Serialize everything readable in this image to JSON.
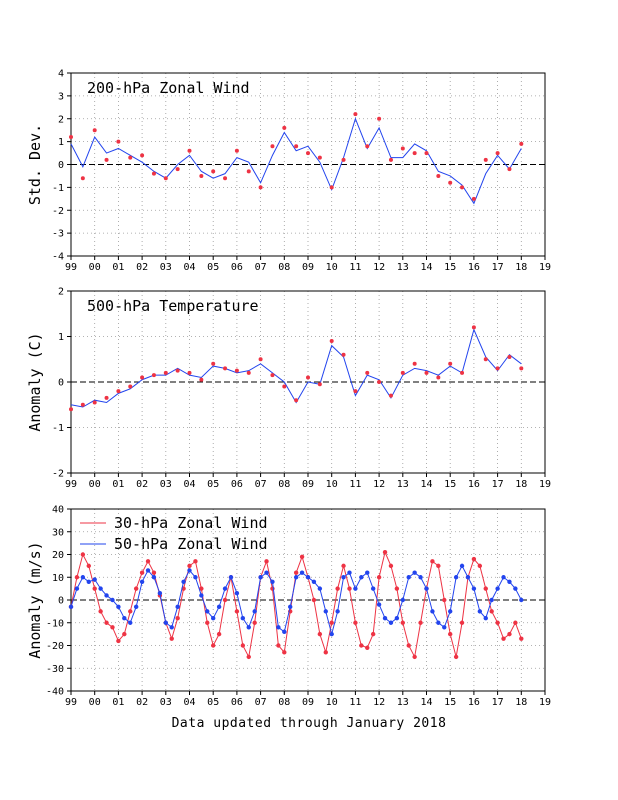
{
  "footer": "Data updated through January 2018",
  "x_ticks": [
    "99",
    "00",
    "01",
    "02",
    "03",
    "04",
    "05",
    "06",
    "07",
    "08",
    "09",
    "10",
    "11",
    "12",
    "13",
    "14",
    "15",
    "16",
    "17",
    "18",
    "19"
  ],
  "colors": {
    "red": "#ee3344",
    "blue": "#2244ee",
    "grid": "#999999",
    "axis": "#000000"
  },
  "chart_data": [
    {
      "type": "line",
      "title": "200-hPa Zonal Wind",
      "ylabel": "Std. Dev.",
      "xlim": [
        1999,
        2019
      ],
      "ylim": [
        -4,
        4
      ],
      "yticks": [
        -4,
        -3,
        -2,
        -1,
        0,
        1,
        2,
        3,
        4
      ],
      "grid": true,
      "x": [
        1999.0,
        1999.5,
        2000.0,
        2000.5,
        2001.0,
        2001.5,
        2002.0,
        2002.5,
        2003.0,
        2003.5,
        2004.0,
        2004.5,
        2005.0,
        2005.5,
        2006.0,
        2006.5,
        2007.0,
        2007.5,
        2008.0,
        2008.5,
        2009.0,
        2009.5,
        2010.0,
        2010.5,
        2011.0,
        2011.5,
        2012.0,
        2012.5,
        2013.0,
        2013.5,
        2014.0,
        2014.5,
        2015.0,
        2015.5,
        2016.0,
        2016.5,
        2017.0,
        2017.5,
        2018.0
      ],
      "series": [
        {
          "style": "dots",
          "values": [
            1.2,
            -0.6,
            1.5,
            0.2,
            1.0,
            0.3,
            0.4,
            -0.4,
            -0.6,
            -0.2,
            0.6,
            -0.5,
            -0.3,
            -0.6,
            0.6,
            -0.3,
            -1.0,
            0.8,
            1.6,
            0.8,
            0.5,
            0.3,
            -1.0,
            0.2,
            2.2,
            0.8,
            2.0,
            0.2,
            0.7,
            0.5,
            0.5,
            -0.5,
            -0.8,
            -1.0,
            -1.5,
            0.2,
            0.5,
            -0.2,
            0.9
          ]
        },
        {
          "style": "line",
          "values": [
            0.9,
            -0.1,
            1.2,
            0.5,
            0.7,
            0.4,
            0.1,
            -0.3,
            -0.6,
            0.0,
            0.4,
            -0.3,
            -0.6,
            -0.4,
            0.3,
            0.1,
            -0.8,
            0.4,
            1.4,
            0.6,
            0.8,
            0.1,
            -1.1,
            0.3,
            2.0,
            0.7,
            1.6,
            0.3,
            0.3,
            0.9,
            0.6,
            -0.3,
            -0.5,
            -0.9,
            -1.7,
            -0.4,
            0.4,
            -0.2,
            0.7
          ]
        }
      ]
    },
    {
      "type": "line",
      "title": "500-hPa Temperature",
      "ylabel": "Anomaly (C)",
      "xlim": [
        1999,
        2019
      ],
      "ylim": [
        -2,
        2
      ],
      "yticks": [
        -2,
        -1,
        0,
        1,
        2
      ],
      "grid": true,
      "x": [
        1999.0,
        1999.5,
        2000.0,
        2000.5,
        2001.0,
        2001.5,
        2002.0,
        2002.5,
        2003.0,
        2003.5,
        2004.0,
        2004.5,
        2005.0,
        2005.5,
        2006.0,
        2006.5,
        2007.0,
        2007.5,
        2008.0,
        2008.5,
        2009.0,
        2009.5,
        2010.0,
        2010.5,
        2011.0,
        2011.5,
        2012.0,
        2012.5,
        2013.0,
        2013.5,
        2014.0,
        2014.5,
        2015.0,
        2015.5,
        2016.0,
        2016.5,
        2017.0,
        2017.5,
        2018.0
      ],
      "series": [
        {
          "style": "dots",
          "values": [
            -0.6,
            -0.5,
            -0.45,
            -0.35,
            -0.2,
            -0.1,
            0.1,
            0.15,
            0.2,
            0.25,
            0.2,
            0.05,
            0.4,
            0.3,
            0.25,
            0.2,
            0.5,
            0.15,
            -0.1,
            -0.4,
            0.1,
            -0.05,
            0.9,
            0.6,
            -0.2,
            0.2,
            0.0,
            -0.3,
            0.2,
            0.4,
            0.2,
            0.1,
            0.4,
            0.2,
            1.2,
            0.5,
            0.3,
            0.55,
            0.3
          ]
        },
        {
          "style": "line",
          "values": [
            -0.5,
            -0.55,
            -0.4,
            -0.45,
            -0.25,
            -0.15,
            0.05,
            0.15,
            0.15,
            0.3,
            0.15,
            0.1,
            0.35,
            0.3,
            0.2,
            0.25,
            0.4,
            0.2,
            0.0,
            -0.45,
            0.0,
            -0.05,
            0.8,
            0.55,
            -0.3,
            0.15,
            0.05,
            -0.35,
            0.15,
            0.3,
            0.25,
            0.15,
            0.35,
            0.2,
            1.15,
            0.55,
            0.25,
            0.6,
            0.4
          ]
        }
      ]
    },
    {
      "type": "line",
      "title": "",
      "ylabel": "Anomaly (m/s)",
      "xlim": [
        1999,
        2019
      ],
      "ylim": [
        -40,
        40
      ],
      "yticks": [
        -40,
        -30,
        -20,
        -10,
        0,
        10,
        20,
        30,
        40
      ],
      "grid": true,
      "legend": "top-left",
      "x": [
        1999.0,
        1999.25,
        1999.5,
        1999.75,
        2000.0,
        2000.25,
        2000.5,
        2000.75,
        2001.0,
        2001.25,
        2001.5,
        2001.75,
        2002.0,
        2002.25,
        2002.5,
        2002.75,
        2003.0,
        2003.25,
        2003.5,
        2003.75,
        2004.0,
        2004.25,
        2004.5,
        2004.75,
        2005.0,
        2005.25,
        2005.5,
        2005.75,
        2006.0,
        2006.25,
        2006.5,
        2006.75,
        2007.0,
        2007.25,
        2007.5,
        2007.75,
        2008.0,
        2008.25,
        2008.5,
        2008.75,
        2009.0,
        2009.25,
        2009.5,
        2009.75,
        2010.0,
        2010.25,
        2010.5,
        2010.75,
        2011.0,
        2011.25,
        2011.5,
        2011.75,
        2012.0,
        2012.25,
        2012.5,
        2012.75,
        2013.0,
        2013.25,
        2013.5,
        2013.75,
        2014.0,
        2014.25,
        2014.5,
        2014.75,
        2015.0,
        2015.25,
        2015.5,
        2015.75,
        2016.0,
        2016.25,
        2016.5,
        2016.75,
        2017.0,
        2017.25,
        2017.5,
        2017.75,
        2018.0
      ],
      "series": [
        {
          "name": "30-hPa Zonal Wind",
          "color": "red",
          "values": [
            -3,
            10,
            20,
            15,
            5,
            -5,
            -10,
            -12,
            -18,
            -15,
            -5,
            5,
            12,
            17,
            12,
            2,
            -10,
            -17,
            -8,
            5,
            15,
            17,
            5,
            -10,
            -20,
            -15,
            0,
            10,
            -5,
            -20,
            -25,
            -10,
            10,
            17,
            5,
            -20,
            -23,
            -5,
            12,
            19,
            10,
            0,
            -15,
            -23,
            -10,
            5,
            15,
            5,
            -10,
            -20,
            -21,
            -15,
            10,
            21,
            15,
            5,
            -10,
            -20,
            -25,
            -10,
            5,
            17,
            15,
            0,
            -15,
            -25,
            -10,
            10,
            18,
            15,
            5,
            -5,
            -10,
            -17,
            -15,
            -10,
            -17
          ]
        },
        {
          "name": "50-hPa Zonal Wind",
          "color": "blue",
          "values": [
            -3,
            5,
            10,
            8,
            9,
            5,
            2,
            0,
            -3,
            -8,
            -10,
            -3,
            8,
            13,
            10,
            3,
            -10,
            -12,
            -3,
            8,
            13,
            10,
            2,
            -5,
            -8,
            -3,
            5,
            10,
            3,
            -8,
            -12,
            -5,
            10,
            12,
            8,
            -12,
            -14,
            -3,
            10,
            12,
            10,
            8,
            5,
            -5,
            -15,
            -5,
            10,
            12,
            5,
            10,
            12,
            5,
            -2,
            -8,
            -10,
            -8,
            0,
            10,
            12,
            10,
            5,
            -5,
            -10,
            -12,
            -5,
            10,
            15,
            10,
            5,
            -5,
            -8,
            0,
            5,
            10,
            8,
            5,
            0
          ]
        }
      ]
    }
  ]
}
